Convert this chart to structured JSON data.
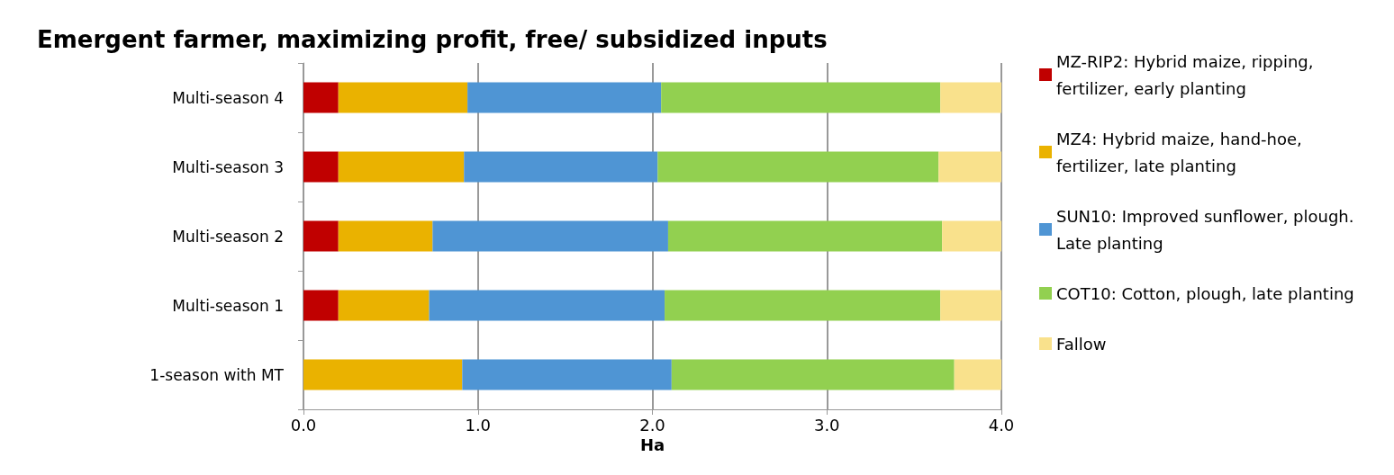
{
  "chart_data": {
    "type": "bar",
    "orientation": "horizontal",
    "stacked": true,
    "title": "Emergent farmer, maximizing profit, free/ subsidized inputs",
    "xlabel": "Ha",
    "categories": [
      "Multi-season 4",
      "Multi-season 3",
      "Multi-season 2",
      "Multi-season 1",
      "1-season with MT"
    ],
    "series": [
      {
        "name": "MZ-RIP2: Hybrid maize, ripping, fertilizer, early planting",
        "color": "#c00000",
        "values": [
          0.2,
          0.2,
          0.2,
          0.2,
          null
        ]
      },
      {
        "name": "MZ4: Hybrid maize, hand-hoe, fertilizer, late planting",
        "color": "#eab200",
        "values": [
          0.74,
          0.72,
          0.54,
          0.52,
          0.91
        ]
      },
      {
        "name": "SUN10: Improved sunflower, plough. Late planting",
        "color": "#4f95d4",
        "values": [
          1.11,
          1.11,
          1.35,
          1.35,
          1.2
        ]
      },
      {
        "name": "COT10: Cotton, plough, late planting",
        "color": "#92d050",
        "values": [
          1.6,
          1.61,
          1.57,
          1.58,
          1.62
        ]
      },
      {
        "name": "Fallow",
        "color": "#f9e18c",
        "values": [
          0.35,
          0.36,
          0.34,
          0.35,
          0.27
        ]
      }
    ],
    "xlim": [
      0,
      4
    ],
    "xticks": [
      {
        "value": 0,
        "label": "0.0"
      },
      {
        "value": 1,
        "label": "1.0"
      },
      {
        "value": 2,
        "label": "2.0"
      },
      {
        "value": 3,
        "label": "3.0"
      },
      {
        "value": 4,
        "label": "4.0"
      }
    ],
    "grid": "x",
    "legend": "right"
  }
}
